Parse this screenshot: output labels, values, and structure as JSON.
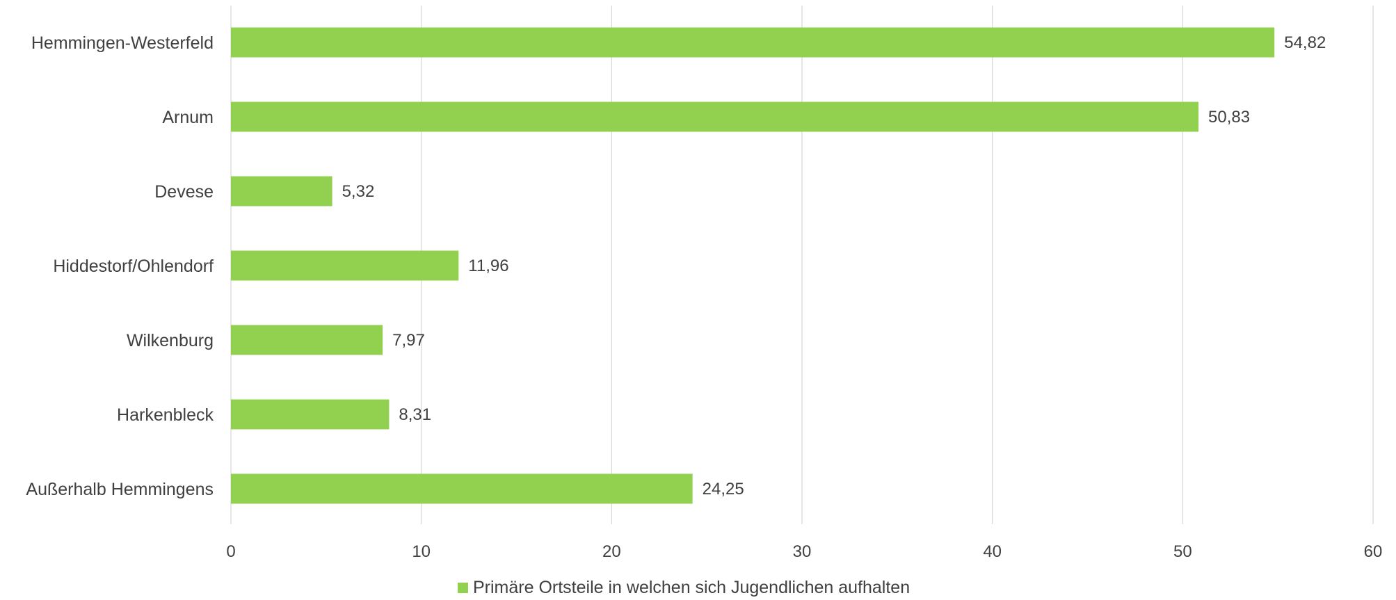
{
  "chart_data": {
    "type": "bar",
    "orientation": "horizontal",
    "categories": [
      "Hemmingen-Westerfeld",
      "Arnum",
      "Devese",
      "Hiddestorf/Ohlendorf",
      "Wilkenburg",
      "Harkenbleck",
      "Außerhalb Hemmingens"
    ],
    "series": [
      {
        "name": "Primäre Ortsteile in welchen sich Jugendlichen aufhalten",
        "values": [
          54.82,
          50.83,
          5.32,
          11.96,
          7.97,
          8.31,
          24.25
        ],
        "color": "#92d050"
      }
    ],
    "data_labels": [
      "54,82",
      "50,83",
      "5,32",
      "11,96",
      "7,97",
      "8,31",
      "24,25"
    ],
    "xlim": [
      0,
      60
    ],
    "x_ticks": [
      0,
      10,
      20,
      30,
      40,
      50,
      60
    ],
    "x_tick_labels": [
      "0",
      "10",
      "20",
      "30",
      "40",
      "50",
      "60"
    ],
    "title": "",
    "xlabel": "",
    "ylabel": "",
    "grid": "vertical",
    "legend_position": "bottom",
    "legend_label": "Primäre Ortsteile in welchen sich Jugendlichen aufhalten"
  }
}
